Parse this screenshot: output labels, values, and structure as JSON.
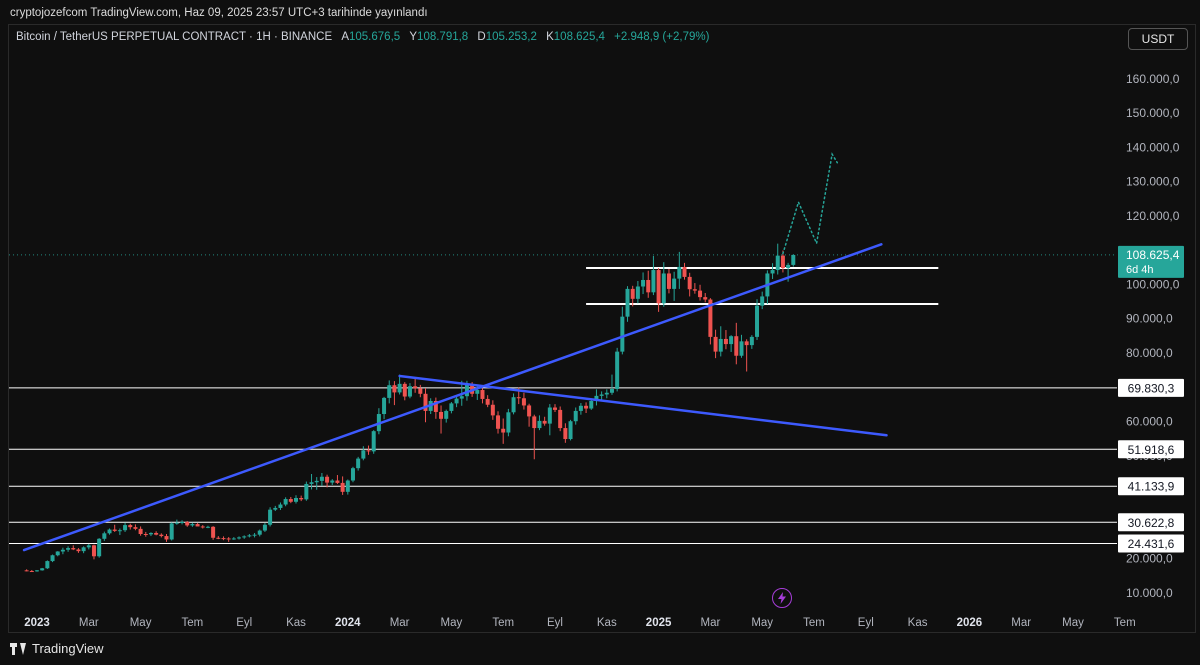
{
  "attribution": "cryptojozefcom TradingView.com, Haz 09, 2025 23:57 UTC+3 tarihinde yayınlandı",
  "legend": {
    "symbol": "Bitcoin / TetherUS PERPETUAL CONTRACT · 1H · BINANCE",
    "o_label": "A",
    "o_value": "105.676,5",
    "h_label": "Y",
    "h_value": "108.791,8",
    "l_label": "D",
    "l_value": "105.253,2",
    "c_label": "K",
    "c_value": "108.625,4",
    "change": "+2.948,9 (+2,79%)"
  },
  "currency_button": "USDT",
  "footer": {
    "brand": "TradingView"
  },
  "icons": {
    "bolt": "lightning-bolt-icon",
    "brand": "tradingview-logo-icon"
  },
  "colors": {
    "up": "#26a69a",
    "down": "#ef5350",
    "trendline": "#3d5afe",
    "level": "#ffffff",
    "projection": "#26a69a"
  },
  "chart_data": {
    "type": "candlestick",
    "y_axis_ticks": [
      "160.000,0",
      "150.000,0",
      "140.000,0",
      "130.000,0",
      "120.000,0",
      "100.000,0",
      "90.000,0",
      "80.000,0",
      "60.000,0",
      "50.000,0",
      "20.000,0",
      "10.000,0"
    ],
    "x_axis_ticks": [
      {
        "label": "2023",
        "bold": true,
        "t": 0
      },
      {
        "label": "Mar",
        "bold": false,
        "t": 2
      },
      {
        "label": "May",
        "bold": false,
        "t": 4
      },
      {
        "label": "Tem",
        "bold": false,
        "t": 6
      },
      {
        "label": "Eyl",
        "bold": false,
        "t": 8
      },
      {
        "label": "Kas",
        "bold": false,
        "t": 10
      },
      {
        "label": "2024",
        "bold": true,
        "t": 12
      },
      {
        "label": "Mar",
        "bold": false,
        "t": 14
      },
      {
        "label": "May",
        "bold": false,
        "t": 16
      },
      {
        "label": "Tem",
        "bold": false,
        "t": 18
      },
      {
        "label": "Eyl",
        "bold": false,
        "t": 20
      },
      {
        "label": "Kas",
        "bold": false,
        "t": 22
      },
      {
        "label": "2025",
        "bold": true,
        "t": 24
      },
      {
        "label": "Mar",
        "bold": false,
        "t": 26
      },
      {
        "label": "May",
        "bold": false,
        "t": 28
      },
      {
        "label": "Tem",
        "bold": false,
        "t": 30
      },
      {
        "label": "Eyl",
        "bold": false,
        "t": 32
      },
      {
        "label": "Kas",
        "bold": false,
        "t": 34
      },
      {
        "label": "2026",
        "bold": true,
        "t": 36
      },
      {
        "label": "Mar",
        "bold": false,
        "t": 38
      },
      {
        "label": "May",
        "bold": false,
        "t": 40
      },
      {
        "label": "Tem",
        "bold": false,
        "t": 42
      }
    ],
    "horizontal_levels": [
      {
        "value": 69830.3,
        "label": "69.830,3",
        "from_t": -0.5
      },
      {
        "value": 51918.6,
        "label": "51.918,6",
        "from_t": -0.5
      },
      {
        "value": 41133.9,
        "label": "41.133,9",
        "from_t": -0.5
      },
      {
        "value": 30622.8,
        "label": "30.622,8",
        "from_t": -0.5
      },
      {
        "value": 24431.6,
        "label": "24.431,6",
        "from_t": -0.5
      }
    ],
    "range_levels": [
      {
        "value": 104800,
        "from_t": 21.2,
        "to_t": 34.8
      },
      {
        "value": 94300,
        "from_t": 21.2,
        "to_t": 34.8
      }
    ],
    "last_price": {
      "value": 108625.4,
      "label": "108.625,4",
      "countdown": "6d 4h"
    },
    "trendlines": [
      {
        "t1": -0.5,
        "v1": 22500,
        "t2": 32.6,
        "v2": 111700
      },
      {
        "t1": 14.0,
        "v1": 73300,
        "t2": 32.8,
        "v2": 56000
      }
    ],
    "projection": [
      [
        28.8,
        109000
      ],
      [
        29.4,
        124000
      ],
      [
        30.1,
        112000
      ],
      [
        30.7,
        138000
      ],
      [
        30.9,
        135500
      ]
    ],
    "candles": [
      [
        -0.4,
        16600,
        16300,
        16900,
        16400
      ],
      [
        -0.2,
        16400,
        16200,
        16700,
        16300
      ],
      [
        0,
        16300,
        16200,
        16700,
        16600
      ],
      [
        0.2,
        16600,
        16500,
        17300,
        17200
      ],
      [
        0.4,
        17200,
        17000,
        19500,
        19300
      ],
      [
        0.6,
        19300,
        19000,
        21200,
        21000
      ],
      [
        0.8,
        21000,
        20700,
        22200,
        22100
      ],
      [
        1,
        22100,
        21300,
        23200,
        22600
      ],
      [
        1.2,
        22600,
        22000,
        23600,
        23100
      ],
      [
        1.4,
        23100,
        22500,
        23900,
        22700
      ],
      [
        1.6,
        22700,
        21700,
        23100,
        22200
      ],
      [
        1.8,
        22200,
        21600,
        23600,
        23300
      ],
      [
        2,
        23300,
        22700,
        24300,
        23900
      ],
      [
        2.2,
        23900,
        19800,
        24100,
        20700
      ],
      [
        2.4,
        20700,
        20300,
        26000,
        25800
      ],
      [
        2.6,
        25800,
        25200,
        27900,
        27400
      ],
      [
        2.8,
        27400,
        27000,
        28800,
        28500
      ],
      [
        3,
        28500,
        27800,
        29900,
        28100
      ],
      [
        3.2,
        28100,
        26900,
        28800,
        28300
      ],
      [
        3.4,
        28300,
        27800,
        30500,
        29800
      ],
      [
        3.6,
        29800,
        28500,
        30200,
        29200
      ],
      [
        3.8,
        29200,
        28300,
        30000,
        28700
      ],
      [
        4,
        28700,
        26700,
        29400,
        27200
      ],
      [
        4.2,
        27200,
        26400,
        27800,
        27100
      ],
      [
        4.4,
        27100,
        26600,
        27700,
        27500
      ],
      [
        4.6,
        27500,
        26800,
        28000,
        27000
      ],
      [
        4.8,
        27000,
        26200,
        27400,
        26600
      ],
      [
        5,
        26600,
        24900,
        27200,
        25600
      ],
      [
        5.2,
        25600,
        25300,
        30600,
        30300
      ],
      [
        5.4,
        30300,
        29900,
        31400,
        30500
      ],
      [
        5.6,
        30500,
        30000,
        31200,
        30700
      ],
      [
        5.8,
        30700,
        29300,
        31000,
        29700
      ],
      [
        6,
        29700,
        29300,
        30500,
        30100
      ],
      [
        6.2,
        30100,
        29500,
        30400,
        29400
      ],
      [
        6.4,
        29400,
        28800,
        29800,
        29200
      ],
      [
        6.6,
        29200,
        28900,
        29600,
        29300
      ],
      [
        6.8,
        29300,
        25500,
        29500,
        26100
      ],
      [
        7,
        26100,
        25700,
        26600,
        26000
      ],
      [
        7.2,
        26000,
        25400,
        26500,
        25900
      ],
      [
        7.4,
        25900,
        24900,
        26300,
        25800
      ],
      [
        7.6,
        25800,
        25500,
        26300,
        25900
      ],
      [
        7.8,
        25900,
        25600,
        26500,
        26200
      ],
      [
        8,
        26200,
        25800,
        26800,
        26500
      ],
      [
        8.2,
        26500,
        26200,
        27200,
        26800
      ],
      [
        8.4,
        26800,
        26200,
        27500,
        27000
      ],
      [
        8.6,
        27000,
        26500,
        28500,
        28200
      ],
      [
        8.8,
        28200,
        27800,
        30400,
        29900
      ],
      [
        9,
        29900,
        29400,
        35000,
        34300
      ],
      [
        9.2,
        34300,
        33900,
        35400,
        34800
      ],
      [
        9.4,
        34800,
        34200,
        36400,
        35800
      ],
      [
        9.6,
        35800,
        35300,
        37900,
        37400
      ],
      [
        9.8,
        37400,
        36200,
        38000,
        36600
      ],
      [
        10,
        36600,
        36100,
        38500,
        37700
      ],
      [
        10.2,
        37700,
        36800,
        38400,
        37300
      ],
      [
        10.4,
        37300,
        36900,
        42500,
        41800
      ],
      [
        10.6,
        41800,
        40200,
        44700,
        42300
      ],
      [
        10.8,
        42300,
        40100,
        43800,
        42700
      ],
      [
        11,
        42700,
        41200,
        45000,
        43900
      ],
      [
        11.2,
        43900,
        40800,
        44500,
        42200
      ],
      [
        11.4,
        42200,
        41500,
        43200,
        42800
      ],
      [
        11.6,
        42800,
        41800,
        44400,
        42100
      ],
      [
        11.8,
        42100,
        38600,
        44000,
        39500
      ],
      [
        12,
        39500,
        38700,
        43100,
        42800
      ],
      [
        12.2,
        42800,
        42300,
        46800,
        46400
      ],
      [
        12.4,
        46400,
        45700,
        49700,
        49200
      ],
      [
        12.6,
        49200,
        48700,
        52800,
        51600
      ],
      [
        12.8,
        51600,
        50300,
        53000,
        51300
      ],
      [
        13,
        51300,
        50600,
        57500,
        57200
      ],
      [
        13.2,
        57200,
        56300,
        63900,
        62200
      ],
      [
        13.4,
        62200,
        60700,
        67200,
        66900
      ],
      [
        13.6,
        66900,
        65300,
        72000,
        70600
      ],
      [
        13.8,
        70600,
        64800,
        71800,
        68500
      ],
      [
        14,
        68500,
        67900,
        73700,
        71000
      ],
      [
        14.2,
        71000,
        66200,
        71500,
        67300
      ],
      [
        14.4,
        67300,
        66800,
        71200,
        70300
      ],
      [
        14.6,
        70300,
        68400,
        72500,
        69700
      ],
      [
        14.8,
        69700,
        67100,
        70700,
        68100
      ],
      [
        15,
        68100,
        59800,
        69800,
        63100
      ],
      [
        15.2,
        63100,
        62200,
        66800,
        66000
      ],
      [
        15.4,
        66000,
        60800,
        67000,
        62800
      ],
      [
        15.6,
        62800,
        56500,
        64700,
        60800
      ],
      [
        15.8,
        60800,
        59700,
        63500,
        63100
      ],
      [
        16,
        63100,
        62400,
        65700,
        65300
      ],
      [
        16.2,
        65300,
        64200,
        67200,
        66700
      ],
      [
        16.4,
        66700,
        64600,
        71900,
        67400
      ],
      [
        16.6,
        67400,
        66100,
        71900,
        70800
      ],
      [
        16.8,
        70800,
        67200,
        71500,
        68100
      ],
      [
        17,
        68100,
        66300,
        70600,
        69200
      ],
      [
        17.2,
        69200,
        65300,
        69700,
        66600
      ],
      [
        17.4,
        66600,
        64200,
        67700,
        64900
      ],
      [
        17.6,
        64900,
        60500,
        66200,
        61800
      ],
      [
        17.8,
        61800,
        56500,
        63000,
        57900
      ],
      [
        18,
        57900,
        53500,
        60900,
        56800
      ],
      [
        18.2,
        56800,
        55700,
        63700,
        62700
      ],
      [
        18.4,
        62700,
        62100,
        68200,
        67100
      ],
      [
        18.6,
        67100,
        65100,
        69900,
        66800
      ],
      [
        18.8,
        66800,
        63500,
        68400,
        64700
      ],
      [
        19,
        64700,
        58500,
        65200,
        61500
      ],
      [
        19.2,
        61500,
        49000,
        62000,
        58100
      ],
      [
        19.4,
        58100,
        57500,
        61800,
        60200
      ],
      [
        19.6,
        60200,
        58800,
        61400,
        59400
      ],
      [
        19.8,
        59400,
        56000,
        65100,
        64100
      ],
      [
        20,
        64100,
        62800,
        65100,
        63400
      ],
      [
        20.2,
        63400,
        57200,
        64400,
        58100
      ],
      [
        20.4,
        58100,
        53800,
        59500,
        54900
      ],
      [
        20.6,
        54900,
        54500,
        60500,
        60100
      ],
      [
        20.8,
        60100,
        59100,
        64100,
        63100
      ],
      [
        21,
        63100,
        62000,
        65400,
        64600
      ],
      [
        21.2,
        64600,
        62500,
        65600,
        63800
      ],
      [
        21.4,
        63800,
        63400,
        66400,
        66000
      ],
      [
        21.6,
        66000,
        64700,
        69400,
        67500
      ],
      [
        21.8,
        67500,
        66400,
        68800,
        67900
      ],
      [
        22,
        67900,
        66800,
        69400,
        68400
      ],
      [
        22.2,
        68400,
        67800,
        73700,
        69500
      ],
      [
        22.4,
        69500,
        68800,
        81500,
        80400
      ],
      [
        22.6,
        80400,
        79600,
        93500,
        90600
      ],
      [
        22.8,
        90600,
        89100,
        99500,
        98700
      ],
      [
        23,
        98700,
        93600,
        99600,
        95800
      ],
      [
        23.2,
        95800,
        94500,
        101000,
        99400
      ],
      [
        23.4,
        99400,
        97200,
        103500,
        101300
      ],
      [
        23.6,
        101300,
        96100,
        104000,
        97700
      ],
      [
        23.8,
        97700,
        96900,
        108300,
        104200
      ],
      [
        24,
        104200,
        92000,
        104800,
        94500
      ],
      [
        24.2,
        94500,
        93500,
        106500,
        103200
      ],
      [
        24.4,
        103200,
        97400,
        104500,
        98700
      ],
      [
        24.6,
        98700,
        95200,
        103700,
        101700
      ],
      [
        24.8,
        101700,
        98700,
        109500,
        105100
      ],
      [
        25,
        105100,
        101400,
        106300,
        102200
      ],
      [
        25.2,
        102200,
        96500,
        103400,
        98600
      ],
      [
        25.4,
        98600,
        97300,
        100400,
        98200
      ],
      [
        25.6,
        98200,
        95300,
        99900,
        96300
      ],
      [
        25.8,
        96300,
        94800,
        97500,
        95600
      ],
      [
        26,
        95600,
        82500,
        96000,
        84700
      ],
      [
        26.2,
        84700,
        78500,
        86800,
        80400
      ],
      [
        26.4,
        80400,
        79000,
        87800,
        84100
      ],
      [
        26.6,
        84100,
        81100,
        86700,
        82600
      ],
      [
        26.8,
        82600,
        80300,
        85200,
        84900
      ],
      [
        27,
        84900,
        76700,
        88800,
        79200
      ],
      [
        27.2,
        79200,
        78600,
        85300,
        83400
      ],
      [
        27.4,
        83400,
        74600,
        84000,
        82300
      ],
      [
        27.6,
        82300,
        81200,
        85200,
        84700
      ],
      [
        27.8,
        84700,
        83800,
        95700,
        93800
      ],
      [
        28,
        93800,
        92800,
        97900,
        96500
      ],
      [
        28.2,
        96500,
        94300,
        104100,
        103200
      ],
      [
        28.4,
        103200,
        101600,
        106200,
        104200
      ],
      [
        28.6,
        104200,
        102900,
        111900,
        108400
      ],
      [
        28.8,
        108400,
        103500,
        109900,
        104800
      ],
      [
        29,
        104800,
        100800,
        106300,
        105700
      ],
      [
        29.2,
        105700,
        105200,
        108800,
        108600
      ]
    ]
  }
}
